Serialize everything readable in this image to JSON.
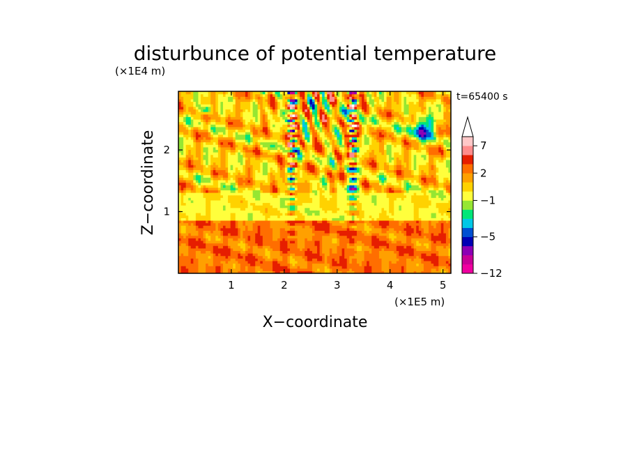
{
  "chart_data": {
    "type": "heatmap",
    "title": "disturbunce of potential temperature",
    "time_label": "t=65400 s",
    "xlabel": "X−coordinate",
    "ylabel": "Z−coordinate",
    "x_unit": "(×1E5 m)",
    "y_unit": "(×1E4 m)",
    "xlim": [
      0,
      5.15
    ],
    "ylim": [
      0,
      2.95
    ],
    "x_ticks": [
      "1",
      "2",
      "3",
      "4",
      "5"
    ],
    "y_ticks": [
      "1",
      "2"
    ],
    "x_tick_values": [
      1,
      2,
      3,
      4,
      5
    ],
    "y_tick_values": [
      1,
      2
    ],
    "colorbar": {
      "labels": [
        "7",
        "2",
        "−1",
        "−5",
        "−12"
      ],
      "label_values": [
        7,
        2,
        -1,
        -5,
        -12
      ],
      "levels": [
        -12,
        -10,
        -8,
        -6,
        -5,
        -4,
        -3,
        -2,
        -1,
        0,
        1,
        2,
        3,
        5,
        7,
        9,
        11
      ],
      "colors": [
        "#f000a0",
        "#c80096",
        "#8c00b4",
        "#0000b4",
        "#0050d2",
        "#00c8e6",
        "#00e678",
        "#96e632",
        "#ffff3c",
        "#ffd200",
        "#ffa000",
        "#ff6e00",
        "#e61e00",
        "#ff8c8c",
        "#ffc8c8",
        "#ffffff"
      ]
    }
  }
}
